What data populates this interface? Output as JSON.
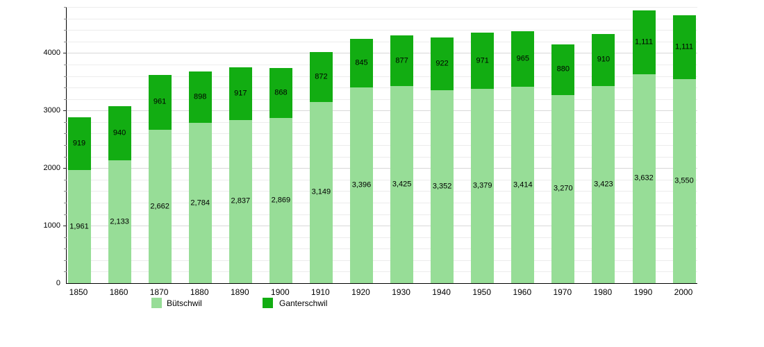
{
  "chart_data": {
    "type": "bar",
    "stacked": true,
    "title": "",
    "xlabel": "",
    "ylabel": "",
    "categories": [
      "1850",
      "1860",
      "1870",
      "1880",
      "1890",
      "1900",
      "1910",
      "1920",
      "1930",
      "1940",
      "1950",
      "1960",
      "1970",
      "1980",
      "1990",
      "2000"
    ],
    "series": [
      {
        "name": "Bütschwil",
        "color": "#97DD97",
        "values": [
          1961,
          2133,
          2662,
          2784,
          2837,
          2869,
          3149,
          3396,
          3425,
          3352,
          3379,
          3414,
          3270,
          3423,
          3632,
          3550
        ]
      },
      {
        "name": "Ganterschwil",
        "color": "#12AD12",
        "values": [
          919,
          940,
          961,
          898,
          917,
          868,
          872,
          845,
          877,
          922,
          971,
          965,
          880,
          910,
          1111,
          1111
        ]
      }
    ],
    "ylim": [
      0,
      4800
    ],
    "yticks": [
      0,
      1000,
      2000,
      3000,
      4000
    ],
    "ytick_labels": [
      "0",
      "1000",
      "2000",
      "3000",
      "4000"
    ],
    "minor_step": 200,
    "grid": true,
    "bar_value_labels": true,
    "legend_position": "bottom"
  },
  "legend": {
    "items": [
      {
        "label": "Bütschwil",
        "color": "#97DD97"
      },
      {
        "label": "Ganterschwil",
        "color": "#12AD12"
      }
    ]
  }
}
